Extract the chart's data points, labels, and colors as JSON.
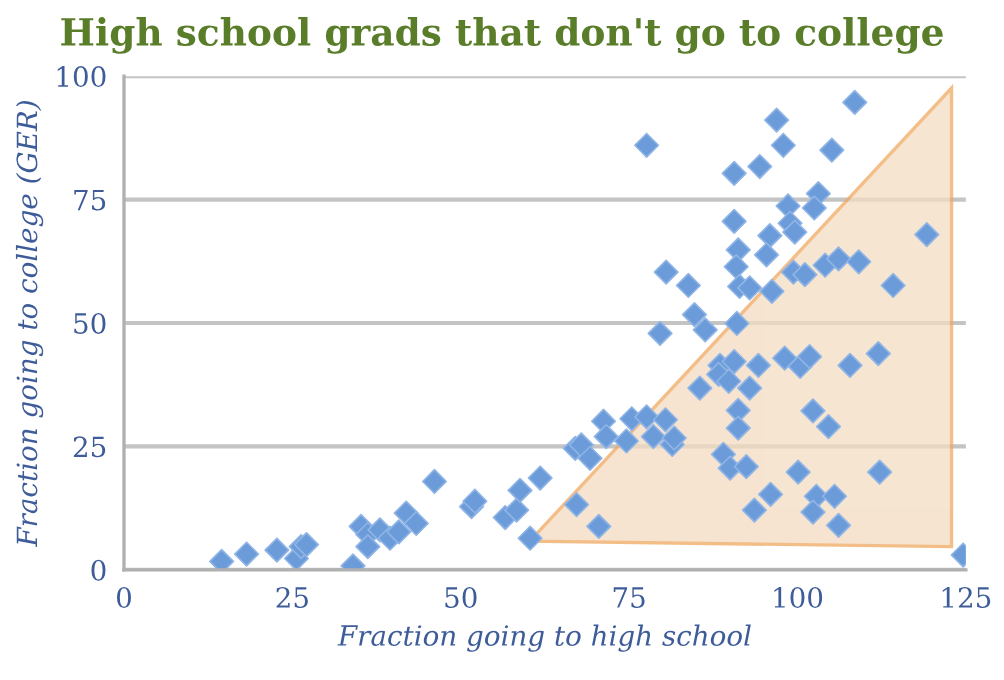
{
  "chart_data": {
    "type": "scatter",
    "title": "High school grads that don't go to college",
    "xlabel": "Fraction going to high school",
    "ylabel": "Fraction going to college (GER)",
    "xlim": [
      0,
      125
    ],
    "ylim": [
      0,
      100
    ],
    "xticks": [
      0,
      25,
      50,
      75,
      100,
      125
    ],
    "yticks": [
      0,
      25,
      50,
      75,
      100
    ],
    "grid": "y",
    "marker": "diamond",
    "legend": false,
    "series": [
      {
        "color": "#6b9bd8",
        "x": [
          14.5,
          18.2,
          22.7,
          25.6,
          26.3,
          27.1,
          34.0,
          35.2,
          36.2,
          36.2,
          38.0,
          39.5,
          40.8,
          41.9,
          43.4,
          46.1,
          51.6,
          52.1,
          56.6,
          58.3,
          58.8,
          61.8,
          60.3,
          67.2,
          70.5,
          67.0,
          67.9,
          69.2,
          71.2,
          71.6,
          74.6,
          75.4,
          77.6,
          78.6,
          80.4,
          81.4,
          81.7,
          79.6,
          84.7,
          86.3,
          85.5,
          88.5,
          88.3,
          89.8,
          90.6,
          91.0,
          92.9,
          94.2,
          91.2,
          91.2,
          89.0,
          90.0,
          92.4,
          93.6,
          96.0,
          98.1,
          100.4,
          101.8,
          102.3,
          104.6,
          100.1,
          102.8,
          102.3,
          105.5,
          106.1,
          107.8,
          112.0,
          112.2,
          124.6,
          77.6,
          96.9,
          108.5,
          97.9,
          105.1,
          90.6,
          94.4,
          103.1,
          102.5,
          98.6,
          98.9,
          99.6,
          90.6,
          95.9,
          91.2,
          95.4,
          90.9,
          80.5,
          83.8,
          91.4,
          92.9,
          96.2,
          99.4,
          101.1,
          104.1,
          106.1,
          109.1,
          114.2,
          119.2
        ],
        "values": [
          1.7,
          3.2,
          4.0,
          2.3,
          4.7,
          5.1,
          0.8,
          8.8,
          7.2,
          4.7,
          8.1,
          6.4,
          7.7,
          11.5,
          9.4,
          17.9,
          12.8,
          13.9,
          10.6,
          12.1,
          16.1,
          18.6,
          6.4,
          13.2,
          8.8,
          24.6,
          25.3,
          22.6,
          30.1,
          27.0,
          26.1,
          30.6,
          31.0,
          27.0,
          30.4,
          25.4,
          26.7,
          47.9,
          51.7,
          48.6,
          36.8,
          41.4,
          39.6,
          38.2,
          42.2,
          49.9,
          36.8,
          41.4,
          32.3,
          28.7,
          23.4,
          20.6,
          20.9,
          12.1,
          15.3,
          42.9,
          41.2,
          43.2,
          32.2,
          29.0,
          19.8,
          14.9,
          11.7,
          14.9,
          9.0,
          41.4,
          43.8,
          19.8,
          3.0,
          86.0,
          91.1,
          94.7,
          86.0,
          85.0,
          80.3,
          81.7,
          76.2,
          73.3,
          73.7,
          70.2,
          68.4,
          70.6,
          67.7,
          64.8,
          63.8,
          61.4,
          60.3,
          57.6,
          57.4,
          57.1,
          56.4,
          60.3,
          59.8,
          61.7,
          63.0,
          62.4,
          57.6,
          67.9
        ]
      }
    ]
  }
}
